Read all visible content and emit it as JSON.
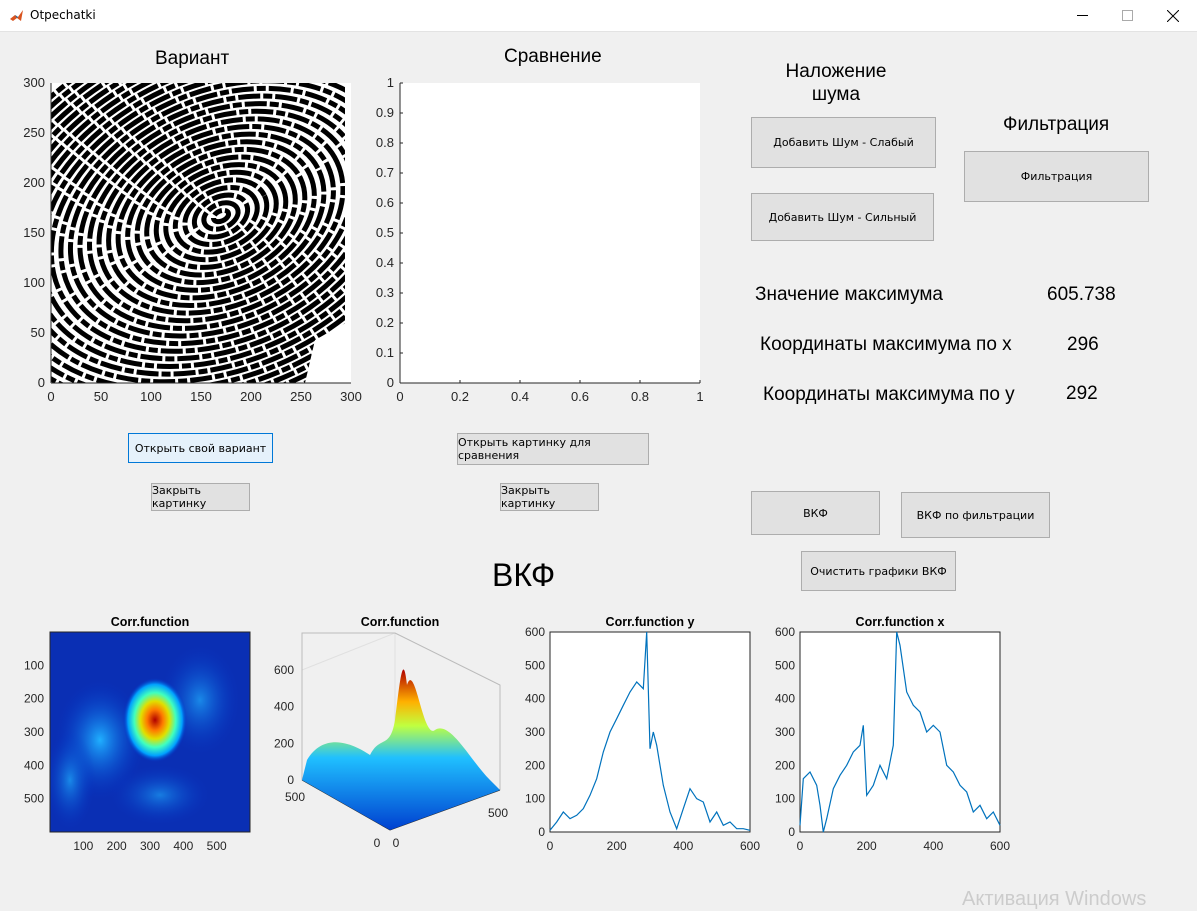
{
  "window": {
    "title": "Otpechatki"
  },
  "panels": {
    "variant_title": "Вариант",
    "compare_title": "Сравнение",
    "noise_title": "Наложение\nшума",
    "filter_title": "Фильтрация",
    "vkf_title": "ВКФ"
  },
  "buttons": {
    "add_noise_weak": "Добавить Шум - Слабый",
    "add_noise_strong": "Добавить Шум - Сильный",
    "filtration": "Фильтрация",
    "open_variant": "Открыть свой вариант",
    "close_image_left": "Закрыть картинку",
    "open_compare": "Открыть картинку для сравнения",
    "close_image_right": "Закрыть картинку",
    "vkf": "ВКФ",
    "vkf_filtered": "ВКФ по фильтрации",
    "clear_vkf": "Очистить графики ВКФ"
  },
  "results": {
    "max_value_label": "Значение максимума",
    "max_value": "605.738",
    "max_x_label": "Координаты максимума по x",
    "max_x": "296",
    "max_y_label": "Координаты максимума по y",
    "max_y": "292"
  },
  "axes": {
    "fp_xticks": [
      "0",
      "50",
      "100",
      "150",
      "200",
      "250",
      "300"
    ],
    "fp_yticks": [
      "0",
      "50",
      "100",
      "150",
      "200",
      "250",
      "300"
    ],
    "cmp_xticks": [
      "0",
      "0.2",
      "0.4",
      "0.6",
      "0.8",
      "1"
    ],
    "cmp_yticks": [
      "0",
      "0.1",
      "0.2",
      "0.3",
      "0.4",
      "0.5",
      "0.6",
      "0.7",
      "0.8",
      "0.9",
      "1"
    ],
    "heat_xticks": [
      "100",
      "200",
      "300",
      "400",
      "500"
    ],
    "heat_yticks": [
      "100",
      "200",
      "300",
      "400",
      "500"
    ],
    "surf_zticks": [
      "0",
      "200",
      "400",
      "600"
    ],
    "surf_left_ticks": [
      "500",
      "0"
    ],
    "surf_right_ticks": [
      "0",
      "500"
    ],
    "line_xticks": [
      "0",
      "200",
      "400",
      "600"
    ],
    "line_yticks": [
      "0",
      "100",
      "200",
      "300",
      "400",
      "500",
      "600"
    ]
  },
  "plot_titles": {
    "heatmap": "Corr.function",
    "surface": "Corr.function",
    "corr_y": "Corr.function y",
    "corr_x": "Corr.function x"
  },
  "chart_data": [
    {
      "type": "heatmap",
      "title": "Corr.function",
      "xlim": [
        0,
        600
      ],
      "ylim": [
        0,
        600
      ],
      "peak": {
        "x": 296,
        "y": 292
      },
      "colormap": "jet"
    },
    {
      "type": "area",
      "title": "Corr.function",
      "zlim": [
        0,
        600
      ],
      "colormap": "jet"
    },
    {
      "type": "line",
      "title": "Corr.function y",
      "xlim": [
        0,
        600
      ],
      "ylim": [
        0,
        600
      ],
      "x": [
        0,
        20,
        40,
        60,
        80,
        100,
        120,
        140,
        160,
        180,
        200,
        220,
        240,
        260,
        280,
        290,
        300,
        310,
        320,
        340,
        360,
        380,
        400,
        420,
        440,
        460,
        480,
        500,
        520,
        540,
        560,
        580,
        600
      ],
      "y": [
        5,
        30,
        60,
        40,
        50,
        70,
        110,
        160,
        240,
        300,
        340,
        380,
        420,
        450,
        430,
        600,
        250,
        300,
        260,
        140,
        60,
        10,
        70,
        130,
        100,
        90,
        30,
        60,
        20,
        30,
        10,
        10,
        5
      ]
    },
    {
      "type": "line",
      "title": "Corr.function x",
      "xlim": [
        0,
        600
      ],
      "ylim": [
        0,
        600
      ],
      "x": [
        0,
        10,
        30,
        50,
        60,
        70,
        80,
        100,
        120,
        140,
        160,
        180,
        190,
        200,
        220,
        240,
        260,
        280,
        290,
        300,
        320,
        340,
        360,
        380,
        400,
        420,
        440,
        460,
        480,
        500,
        520,
        540,
        560,
        580,
        600
      ],
      "y": [
        20,
        160,
        180,
        140,
        80,
        0,
        40,
        130,
        170,
        200,
        240,
        260,
        320,
        110,
        140,
        200,
        160,
        260,
        600,
        560,
        420,
        380,
        360,
        300,
        320,
        300,
        200,
        180,
        140,
        120,
        60,
        80,
        40,
        60,
        20
      ]
    }
  ],
  "watermark": "Активация Windows",
  "colors": {
    "accent": "#0072bd",
    "button": "#e1e1e1",
    "focus": "#e5f1fb"
  }
}
